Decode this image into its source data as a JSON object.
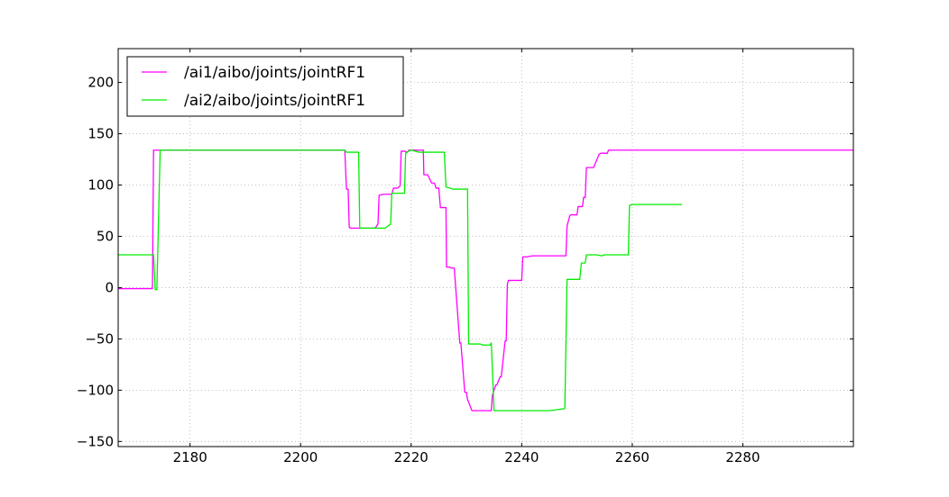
{
  "chart_data": {
    "type": "line",
    "title": "",
    "xlabel": "",
    "ylabel": "",
    "xlim": [
      2167,
      2300
    ],
    "ylim": [
      -155,
      233
    ],
    "xticks": [
      2180,
      2200,
      2220,
      2240,
      2260,
      2280
    ],
    "yticks": [
      -150,
      -100,
      -50,
      0,
      50,
      100,
      150,
      200
    ],
    "ytick_labels": [
      "−150",
      "−100",
      "−50",
      "0",
      "50",
      "100",
      "150",
      "200"
    ],
    "grid": true,
    "legend_position": "top-left",
    "series": [
      {
        "name": "/ai1/aibo/joints/jointRF1",
        "color": "#ff00ff",
        "x": [
          2167,
          2173.2,
          2173.4,
          2182,
          2197,
          2208,
          2208.3,
          2208.6,
          2208.8,
          2209,
          2210.5,
          2212,
          2213.5,
          2214,
          2214.2,
          2215,
          2216.5,
          2216.8,
          2217.5,
          2218,
          2218.2,
          2218.8,
          2219.3,
          2219.6,
          2220.5,
          2221.5,
          2222.2,
          2222.3,
          2223,
          2223.7,
          2224.2,
          2224.5,
          2225,
          2225.3,
          2226.3,
          2226.4,
          2227,
          2227.3,
          2227.8,
          2228.8,
          2229,
          2229.7,
          2230,
          2230.2,
          2231,
          2234.5,
          2234.7,
          2235.3,
          2235.5,
          2236.1,
          2236.3,
          2237,
          2237.2,
          2237.4,
          2237.6,
          2240,
          2240.2,
          2241,
          2242,
          2245,
          2247,
          2248,
          2248.2,
          2248.7,
          2248.9,
          2250,
          2250.2,
          2251,
          2251.2,
          2251.5,
          2251.7,
          2252.5,
          2253,
          2254,
          2254.3,
          2255.5,
          2255.7,
          2260,
          2270,
          2285,
          2300
        ],
        "y": [
          -1,
          -1,
          134,
          134,
          134,
          134,
          96,
          96,
          59,
          58,
          58,
          58,
          58,
          62,
          90,
          91,
          91,
          97,
          97,
          99,
          133,
          133,
          132,
          134,
          134,
          134,
          134,
          110,
          110,
          102,
          102,
          97,
          97,
          78,
          78,
          20,
          20,
          19,
          19,
          -54,
          -54,
          -102,
          -102,
          -109,
          -120,
          -120,
          -105,
          -95,
          -95,
          -87,
          -87,
          -52,
          -52,
          3,
          7,
          7,
          30,
          30,
          31,
          31,
          31,
          31,
          60,
          70,
          71,
          71,
          79,
          79,
          88,
          88,
          117,
          117,
          117,
          130,
          131,
          131,
          134,
          134,
          134,
          134,
          134
        ]
      },
      {
        "name": "/ai2/aibo/joints/jointRF1",
        "color": "#00ee00",
        "x": [
          2167,
          2173.4,
          2173.7,
          2174,
          2174.6,
          2175,
          2180,
          2195,
          2208,
          2208.3,
          2210.5,
          2210.7,
          2213.4,
          2213.8,
          2215.3,
          2216.3,
          2216.5,
          2218.8,
          2219,
          2219.5,
          2220,
          2221.5,
          2222,
          2226,
          2226.3,
          2227,
          2227.5,
          2230.2,
          2230.4,
          2232.5,
          2233,
          2234.3,
          2234.5,
          2235,
          2240,
          2245,
          2247.8,
          2248.2,
          2248.4,
          2250.5,
          2250.8,
          2251.5,
          2251.7,
          2253.5,
          2254.5,
          2255,
          2259.3,
          2259.5,
          2260,
          2265,
          2269
        ],
        "y": [
          32,
          32,
          -2,
          -2,
          134,
          134,
          134,
          134,
          134,
          132,
          132,
          58,
          58,
          58,
          58,
          62,
          92,
          92,
          131,
          133,
          134,
          132,
          132,
          132,
          98,
          97,
          96,
          96,
          -55,
          -55,
          -56,
          -56,
          -54,
          -120,
          -120,
          -120,
          -118,
          8,
          8,
          8,
          24,
          24,
          32,
          32,
          31,
          32,
          32,
          80,
          81,
          81,
          81
        ]
      }
    ]
  }
}
